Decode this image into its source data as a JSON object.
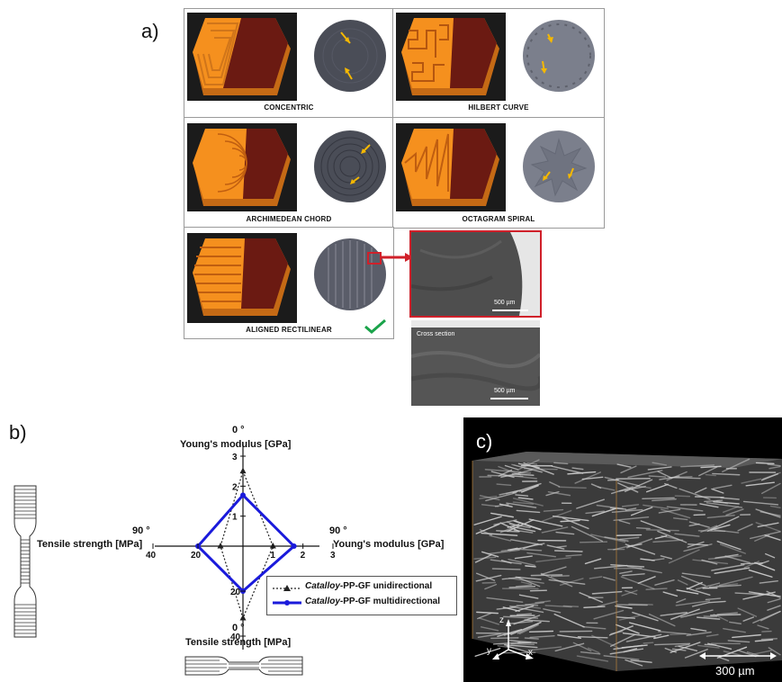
{
  "panel_a": {
    "letter": "a)",
    "cells": [
      {
        "label": "CONCENTRIC"
      },
      {
        "label": "HILBERT CURVE"
      },
      {
        "label": "ARCHIMEDEAN CHORD"
      },
      {
        "label": "OCTAGRAM SPIRAL"
      },
      {
        "label": "ALIGNED RECTILINEAR"
      }
    ],
    "sem_top_scale": "500 µm",
    "sem_bottom_title": "Cross section",
    "sem_bottom_scale": "500 µm",
    "colors": {
      "print_orange": "#f5901e",
      "print_dark": "#6b1a12",
      "disc": "#4a4d57",
      "arrow": "#f5b800",
      "check": "#1aa34a",
      "highlight": "#d0202a"
    }
  },
  "panel_b": {
    "letter": "b)",
    "axis_top_angle": "0 °",
    "axis_top_label": "Young's modulus [GPa]",
    "axis_right_angle": "90 °",
    "axis_right_label": "Young's modulus [GPa]",
    "axis_left_angle": "90 °",
    "axis_left_label": "Tensile strength [MPa]",
    "axis_bottom_angle": "0 °",
    "axis_bottom_label": "Tensile strength [MPa]",
    "legend": [
      {
        "name_italic": "Catalloy",
        "name_rest": "-PP-GF unidirectional",
        "style": "dotted",
        "color": "#222222"
      },
      {
        "name_italic": "Catalloy",
        "name_rest": "-PP-GF multidirectional",
        "style": "solid",
        "color": "#1a1adb"
      }
    ]
  },
  "chart_data": {
    "type": "radar",
    "axes": [
      {
        "name": "Young's modulus [GPa] 0 °",
        "ticks": [
          "1",
          "2",
          "3"
        ],
        "max": 3
      },
      {
        "name": "Young's modulus [GPa] 90 °",
        "ticks": [
          "1",
          "2",
          "3"
        ],
        "max": 3
      },
      {
        "name": "Tensile strength [MPa] 0 °",
        "ticks": [
          "20",
          "40"
        ],
        "max": 40
      },
      {
        "name": "Tensile strength [MPa] 90 °",
        "ticks": [
          "20",
          "40"
        ],
        "max": 40
      }
    ],
    "series": [
      {
        "name": "Catalloy-PP-GF unidirectional",
        "values": [
          2.5,
          1.0,
          32,
          10
        ]
      },
      {
        "name": "Catalloy-PP-GF multidirectional",
        "values": [
          1.7,
          1.7,
          20,
          20
        ]
      }
    ]
  },
  "panel_c": {
    "letter": "c)",
    "axis_z": "z",
    "axis_y": "y",
    "axis_x": "x",
    "scale": "300 µm"
  }
}
